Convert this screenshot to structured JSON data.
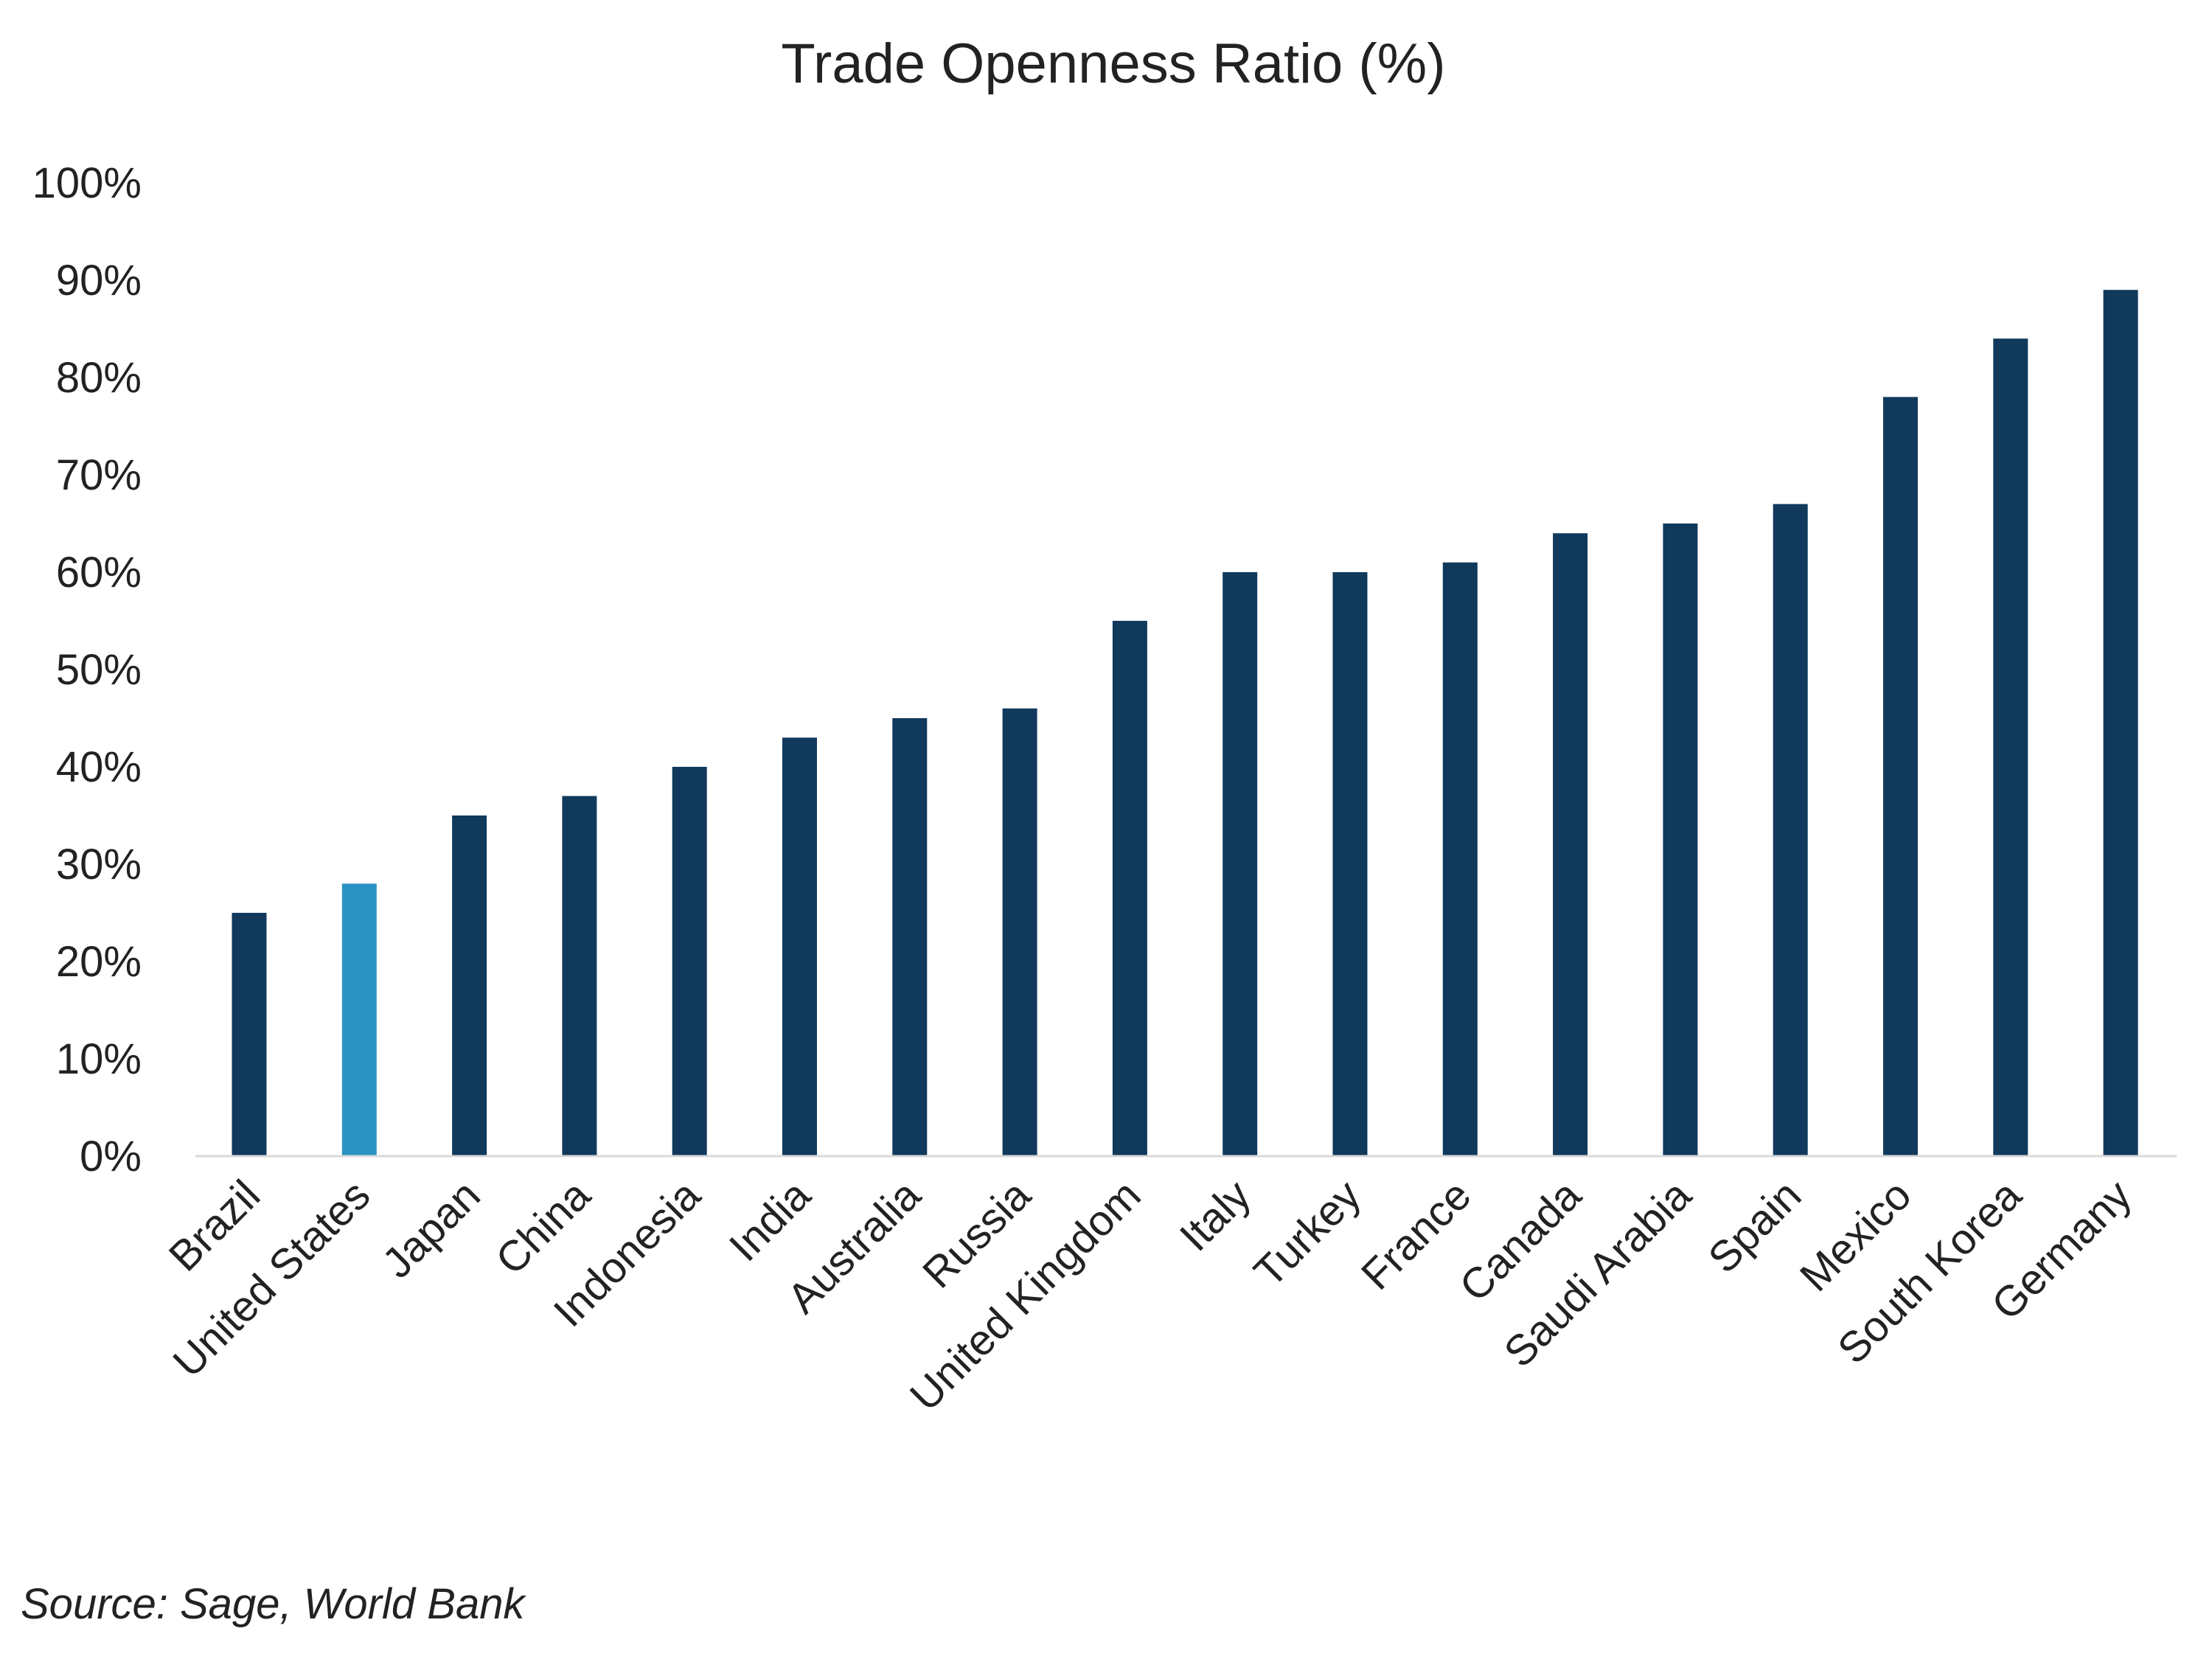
{
  "chart_data": {
    "type": "bar",
    "title": "Trade Openness Ratio (%)",
    "xlabel": "",
    "ylabel": "",
    "ylim": [
      0,
      100
    ],
    "yticks": [
      "0%",
      "10%",
      "20%",
      "30%",
      "40%",
      "50%",
      "60%",
      "70%",
      "80%",
      "90%",
      "100%"
    ],
    "grid": false,
    "categories": [
      "Brazil",
      "United States",
      "Japan",
      "China",
      "Indonesia",
      "India",
      "Australia",
      "Russia",
      "United Kingdom",
      "Italy",
      "Turkey",
      "France",
      "Canada",
      "Saudi Arabia",
      "Spain",
      "Mexico",
      "South Korea",
      "Germany"
    ],
    "values": [
      25,
      28,
      35,
      37,
      40,
      43,
      45,
      46,
      55,
      60,
      60,
      61,
      64,
      65,
      67,
      78,
      84,
      89
    ],
    "highlight": "United States",
    "colors": {
      "default": "#10395C",
      "highlight": "#2B93C3",
      "axis": "#D9D9D9"
    },
    "source": "Source: Sage, World Bank"
  }
}
